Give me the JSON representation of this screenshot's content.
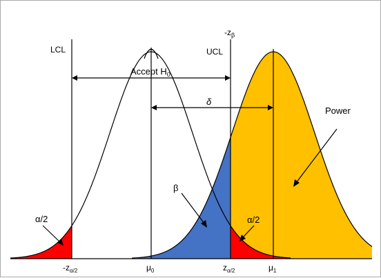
{
  "colors": {
    "alpha_region": "#ff0000",
    "beta_region": "#4472c4",
    "power_region": "#ffc000",
    "curve": "#000000",
    "border": "#a9a9a9"
  },
  "labels": {
    "lcl": "LCL",
    "ucl": "UCL",
    "neg_z_beta": {
      "main": "-z",
      "sub": "β"
    },
    "accept_h0": {
      "main": "Accept H",
      "sub": "0"
    },
    "delta": "δ",
    "power": "Power",
    "beta": "β",
    "alpha_half_left": "α/2",
    "alpha_half_right": "α/2"
  },
  "axis_labels": {
    "neg_z_alpha_half": {
      "main": "-z",
      "sub": "α/2"
    },
    "mu0": {
      "main": "μ",
      "sub": "0"
    },
    "z_alpha_half": {
      "main": "z",
      "sub": "α/2"
    },
    "mu1": {
      "main": "μ",
      "sub": "1"
    }
  }
}
